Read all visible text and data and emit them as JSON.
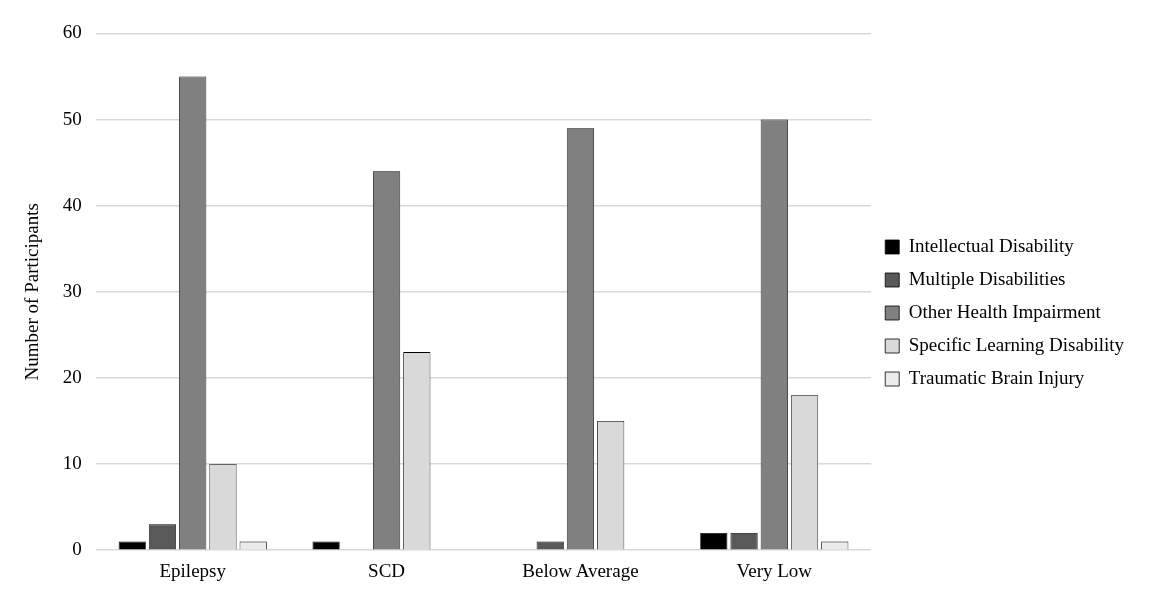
{
  "chart_data": {
    "type": "bar",
    "ylabel": "Number of Participants",
    "categories": [
      "Epilepsy",
      "SCD",
      "Below Average",
      "Very Low"
    ],
    "series": [
      {
        "name": "Intellectual Disability",
        "color": "#000000",
        "values": [
          1,
          1,
          0,
          2
        ]
      },
      {
        "name": "Multiple Disabilities",
        "color": "#595959",
        "values": [
          3,
          0,
          1,
          2
        ]
      },
      {
        "name": "Other Health Impairment",
        "color": "#808080",
        "values": [
          55,
          44,
          49,
          50
        ]
      },
      {
        "name": "Specific Learning Disability",
        "color": "#d9d9d9",
        "values": [
          10,
          23,
          15,
          18
        ]
      },
      {
        "name": "Traumatic Brain Injury",
        "color": "#ebebeb",
        "values": [
          1,
          0,
          0,
          1
        ]
      }
    ],
    "ylim": [
      0,
      60
    ],
    "yticks": [
      0,
      10,
      20,
      30,
      40,
      50,
      60
    ],
    "grid": "y",
    "legend": "right"
  }
}
